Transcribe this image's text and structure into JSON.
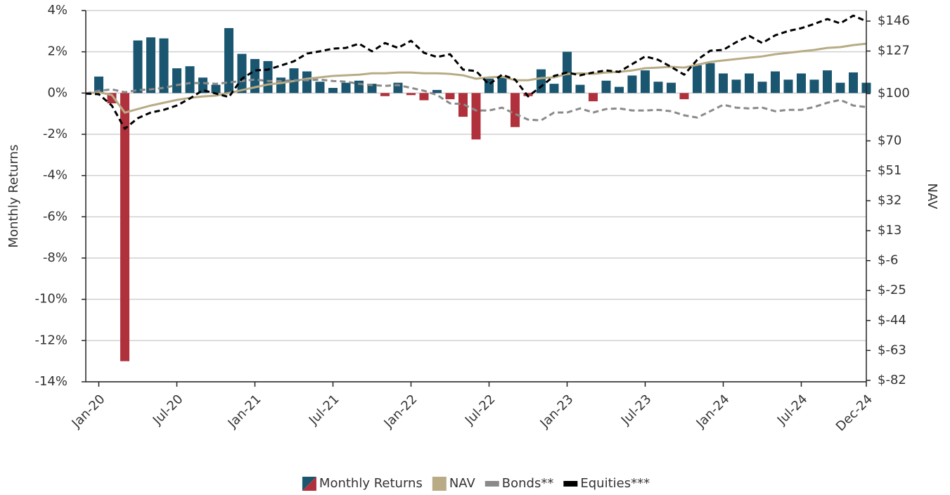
{
  "chart_data": {
    "type": "combo",
    "x_label": "",
    "y_label": "Monthly Returns",
    "y2_label": "NAV",
    "categories": [
      null,
      "Jan-20",
      null,
      null,
      null,
      null,
      null,
      "Jul-20",
      null,
      null,
      null,
      null,
      null,
      "Jan-21",
      null,
      null,
      null,
      null,
      null,
      "Jul-21",
      null,
      null,
      null,
      null,
      null,
      "Jan-22",
      null,
      null,
      null,
      null,
      null,
      "Jul-22",
      null,
      null,
      null,
      null,
      null,
      "Jan-23",
      null,
      null,
      null,
      null,
      null,
      "Jul-23",
      null,
      null,
      null,
      null,
      null,
      "Jan-24",
      null,
      null,
      null,
      null,
      null,
      "Jul-24",
      null,
      null,
      null,
      null,
      "Dec-24"
    ],
    "ylim": [
      -14,
      4
    ],
    "yticks": [
      {
        "value": 4,
        "label": "4%"
      },
      {
        "value": 2,
        "label": "2%"
      },
      {
        "value": 0,
        "label": "0%"
      },
      {
        "value": -2,
        "label": "-2%"
      },
      {
        "value": -4,
        "label": "-4%"
      },
      {
        "value": -6,
        "label": "-6%"
      },
      {
        "value": -8,
        "label": "-8%"
      },
      {
        "value": -10,
        "label": "-10%"
      },
      {
        "value": -12,
        "label": "-12%"
      },
      {
        "value": -14,
        "label": "-14%"
      }
    ],
    "y2lim": [
      -82.9,
      152.7
    ],
    "y2ticks": [
      {
        "value": 146,
        "label": "$146"
      },
      {
        "value": 127,
        "label": "$127"
      },
      {
        "value": 100,
        "label": "$100"
      },
      {
        "value": 70,
        "label": "$70"
      },
      {
        "value": 51,
        "label": "$51"
      },
      {
        "value": 32,
        "label": "$32"
      },
      {
        "value": 13,
        "label": "$13"
      },
      {
        "value": -6,
        "label": "$-6"
      },
      {
        "value": -25,
        "label": "$-25"
      },
      {
        "value": -44,
        "label": "$-44"
      },
      {
        "value": -63,
        "label": "$-63"
      },
      {
        "value": -82,
        "label": "$-82"
      }
    ],
    "grid": true,
    "series": [
      {
        "name": "Monthly Returns",
        "type": "bar",
        "color": "#1b5670",
        "negative_color": "#b0313c",
        "values": [
          null,
          0.8,
          -0.5,
          -13,
          2.55,
          2.7,
          2.65,
          1.2,
          1.3,
          0.75,
          0.4,
          3.15,
          1.9,
          1.65,
          1.55,
          0.75,
          1.2,
          1.05,
          0.55,
          0.25,
          0.5,
          0.6,
          0.45,
          -0.15,
          0.5,
          -0.1,
          -0.35,
          0.15,
          -0.3,
          -1.15,
          -2.25,
          0.7,
          0.8,
          -1.65,
          -0.15,
          1.15,
          0.45,
          2.0,
          0.4,
          -0.4,
          0.6,
          0.3,
          0.85,
          1.1,
          0.55,
          0.5,
          -0.3,
          1.35,
          1.45,
          0.95,
          0.65,
          0.95,
          0.55,
          1.05,
          0.65,
          0.95,
          0.65,
          1.1,
          0.5,
          1.0,
          0.5
        ]
      },
      {
        "name": "NAV",
        "type": "line",
        "axis": "y2",
        "color": "#b8ab85",
        "dashed": false,
        "values": [
          100,
          100.9,
          99.1,
          87.9,
          90.2,
          92.4,
          94.2,
          96.0,
          97.3,
          98.2,
          98.7,
          100.4,
          102.2,
          104.0,
          105.8,
          106.7,
          108.0,
          109.4,
          110.3,
          111.2,
          111.6,
          112.0,
          112.9,
          112.9,
          113.4,
          113.4,
          112.9,
          112.9,
          112.5,
          111.6,
          109.4,
          110.3,
          110.7,
          108.5,
          108.5,
          109.8,
          110.3,
          112.5,
          112.9,
          112.5,
          113.4,
          113.8,
          114.7,
          116.1,
          116.5,
          117.0,
          116.5,
          118.3,
          120.1,
          121.0,
          121.9,
          122.8,
          123.6,
          125.0,
          125.9,
          126.8,
          127.7,
          129.0,
          129.5,
          130.8,
          131.7
        ]
      },
      {
        "name": "Bonds**",
        "type": "line",
        "axis": "y2",
        "color": "#8a8a8a",
        "dashed": true,
        "values": [
          100,
          101.8,
          102.7,
          100.9,
          102.2,
          102.7,
          103.6,
          105.4,
          106.7,
          106.7,
          106.2,
          107.1,
          108.0,
          108.9,
          108.0,
          108.0,
          108.5,
          108.5,
          108.9,
          108.0,
          107.6,
          106.2,
          105.4,
          104.9,
          105.4,
          103.6,
          101.8,
          99.1,
          93.8,
          93.3,
          89.3,
          89.3,
          91.1,
          87.1,
          83.5,
          83.0,
          88.0,
          88.0,
          90.6,
          88.0,
          90.2,
          90.6,
          89.3,
          89.3,
          89.7,
          88.8,
          86.2,
          84.8,
          88.8,
          92.9,
          91.1,
          90.6,
          91.1,
          88.8,
          89.7,
          89.7,
          91.5,
          94.2,
          96.0,
          92.4,
          91.5
        ]
      },
      {
        "name": "Equities***",
        "type": "line",
        "axis": "y2",
        "color": "#000000",
        "dashed": true,
        "values": [
          100,
          99.6,
          92.4,
          77.7,
          84.4,
          88.0,
          89.7,
          92.4,
          96.9,
          102.2,
          100,
          97.8,
          109.4,
          114.7,
          115.2,
          117.8,
          120.5,
          125.4,
          126.8,
          128.5,
          129.0,
          131.7,
          126.8,
          132.1,
          129.0,
          133.5,
          125.9,
          123.2,
          125.0,
          115.2,
          114.3,
          105.8,
          112.0,
          108.9,
          98.2,
          104.5,
          111.2,
          113.4,
          111.6,
          113.4,
          114.7,
          113.8,
          118.7,
          123.6,
          121.4,
          116.9,
          112.0,
          121.4,
          127.2,
          127.7,
          132.6,
          136.6,
          132.1,
          137.0,
          139.7,
          141.5,
          144.2,
          147.3,
          144.6,
          149.5,
          145.9
        ]
      }
    ]
  }
}
